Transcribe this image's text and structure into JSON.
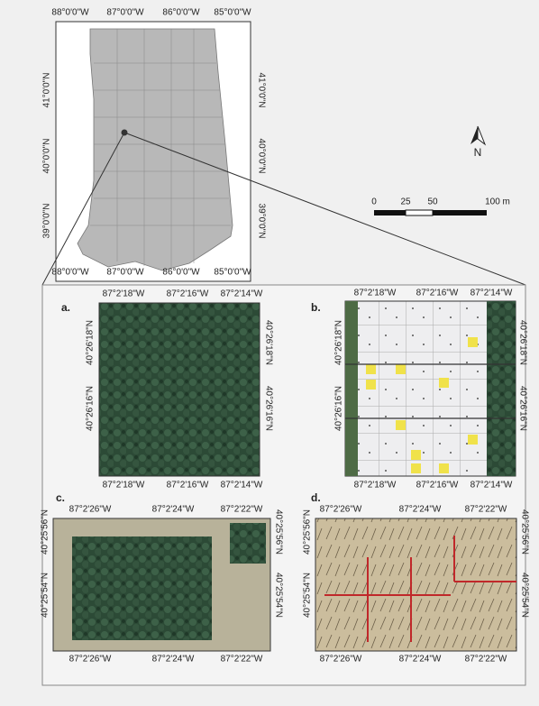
{
  "overview_map": {
    "top_labels": [
      "88°0'0\"W",
      "87°0'0\"W",
      "86°0'0\"W",
      "85°0'0\"W"
    ],
    "bottom_labels": [
      "88°0'0\"W",
      "87°0'0\"W",
      "86°0'0\"W",
      "85°0'0\"W"
    ],
    "left_labels": [
      "41°0'0\"N",
      "40°0'0\"N",
      "39°0'0\"N"
    ],
    "right_labels": [
      "41°0'0\"N",
      "40°0'0\"N",
      "39°0'0\"N"
    ]
  },
  "north_label": "N",
  "scale_bar_labels": [
    "0",
    "25",
    "50",
    "100 m"
  ],
  "panels": [
    {
      "letter": "a.",
      "top_labels": [
        "87°2'18\"W",
        "87°2'16\"W",
        "87°2'14\"W"
      ],
      "bottom_labels": [
        "87°2'18\"W",
        "87°2'16\"W",
        "87°2'14\"W"
      ],
      "left_labels": [
        "40°26'18\"N",
        "40°26'16\"N"
      ],
      "right_labels": [
        "40°26'18\"N",
        "40°26'16\"N"
      ]
    },
    {
      "letter": "b.",
      "top_labels": [
        "87°2'18\"W",
        "87°2'16\"W",
        "87°2'14\"W"
      ],
      "bottom_labels": [
        "87°2'18\"W",
        "87°2'16\"W",
        "87°2'14\"W"
      ],
      "left_labels": [
        "40°26'18\"N",
        "40°26'16\"N"
      ],
      "right_labels": [
        "40°26'18\"N",
        "40°26'16\"N"
      ]
    },
    {
      "letter": "c.",
      "top_labels": [
        "87°2'26\"W",
        "87°2'24\"W",
        "87°2'22\"W"
      ],
      "bottom_labels": [
        "87°2'26\"W",
        "87°2'24\"W",
        "87°2'22\"W"
      ],
      "left_labels": [
        "40°25'56\"N",
        "40°25'54\"N"
      ],
      "right_labels": [
        "40°25'56\"N",
        "40°25'54\"N"
      ]
    },
    {
      "letter": "d.",
      "top_labels": [
        "87°2'26\"W",
        "87°2'24\"W",
        "87°2'22\"W"
      ],
      "bottom_labels": [
        "87°2'26\"W",
        "87°2'24\"W",
        "87°2'22\"W"
      ],
      "left_labels": [
        "40°25'56\"N",
        "40°25'54\"N"
      ],
      "right_labels": [
        "40°25'56\"N",
        "40°25'54\"N"
      ]
    }
  ]
}
